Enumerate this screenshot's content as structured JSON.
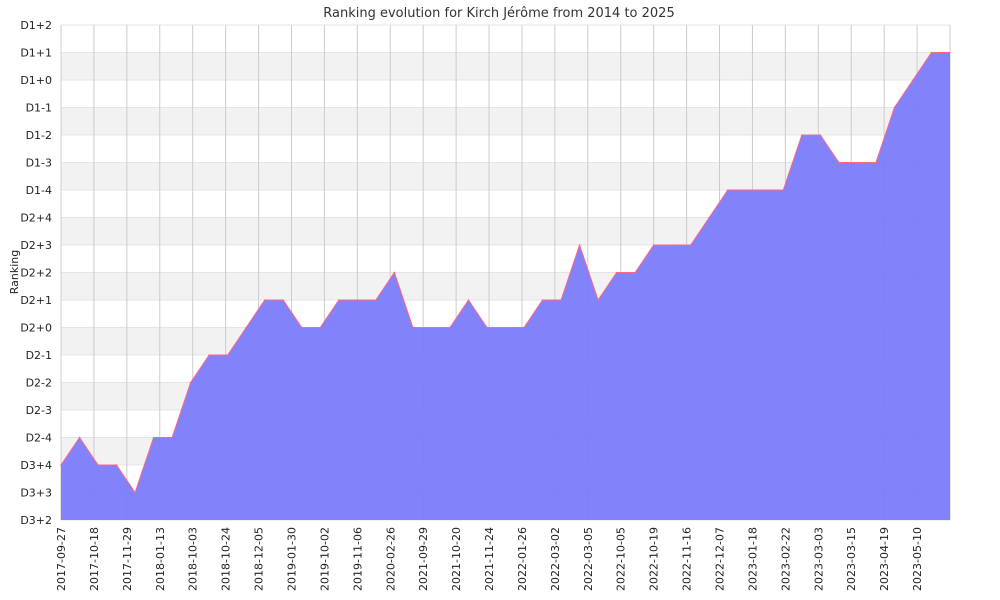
{
  "chart_data": {
    "type": "area",
    "title": "Ranking evolution for Kirch Jérôme from 2014 to 2025",
    "ylabel": "Ranking",
    "xlabel": "",
    "y_levels": [
      "D3+2",
      "D3+3",
      "D3+4",
      "D2-4",
      "D2-3",
      "D2-2",
      "D2-1",
      "D2+0",
      "D2+1",
      "D2+2",
      "D2+3",
      "D2+4",
      "D1-4",
      "D1-3",
      "D1-2",
      "D1-1",
      "D1+0",
      "D1+1",
      "D1+2"
    ],
    "x_ticks": [
      "2017-09-27",
      "2017-10-18",
      "2017-11-29",
      "2018-01-13",
      "2018-10-03",
      "2018-10-24",
      "2018-12-05",
      "2019-01-30",
      "2019-10-02",
      "2019-11-06",
      "2020-02-26",
      "2021-09-29",
      "2021-10-20",
      "2021-11-24",
      "2022-01-26",
      "2022-03-02",
      "2022-03-05",
      "2022-10-05",
      "2022-10-19",
      "2022-11-16",
      "2022-12-07",
      "2023-01-18",
      "2023-02-22",
      "2023-03-03",
      "2023-03-15",
      "2023-04-19",
      "2023-05-10"
    ],
    "series": [
      {
        "values": [
          "D3+4",
          "D2-4",
          "D3+4",
          "D3+4",
          "D3+3",
          "D2-4",
          "D2-4",
          "D2-2",
          "D2-1",
          "D2-1",
          "D2+0",
          "D2+1",
          "D2+1",
          "D2+0",
          "D2+0",
          "D2+1",
          "D2+1",
          "D2+1",
          "D2+2",
          "D2+0",
          "D2+0",
          "D2+0",
          "D2+1",
          "D2+0",
          "D2+0",
          "D2+0",
          "D2+1",
          "D2+1",
          "D2+3",
          "D2+1",
          "D2+2",
          "D2+2",
          "D2+3",
          "D2+3",
          "D2+3",
          "D2+4",
          "D1-4",
          "D1-4",
          "D1-4",
          "D1-4",
          "D1-2",
          "D1-2",
          "D1-3",
          "D1-3",
          "D1-3",
          "D1-1",
          "D1+0",
          "D1+1",
          "D1+1"
        ]
      }
    ],
    "colors": {
      "fill": "#7b7bfb",
      "line": "#ff6680",
      "grid_band": "#f2f2f2",
      "grid_line": "#cccccc"
    },
    "grid": true,
    "legend": "none"
  }
}
